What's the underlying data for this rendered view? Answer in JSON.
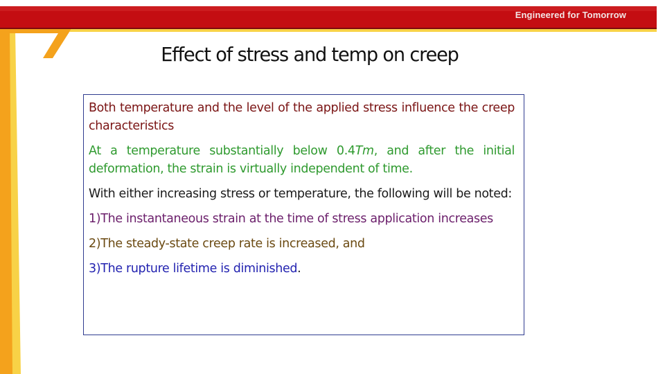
{
  "header": {
    "tagline": "Engineered for Tomorrow",
    "colors": {
      "band_red": "#c40d12",
      "band_shadow": "#7d0a0d",
      "accent_orange": "#f4a21c",
      "accent_yellow": "#f8d247"
    }
  },
  "title": "Effect of stress and temp on creep",
  "content": {
    "p1": "Both temperature and the level of the applied stress influence the creep characteristics",
    "p2_before": "At a temperature substantially below 0.4",
    "p2_italic": "Tm",
    "p2_after": ", and after the initial deformation, the strain is virtually independent of time.",
    "p3": "With either increasing stress or temperature, the following will be noted:",
    "p4": "1)The instantaneous strain at the time of stress application increases",
    "p5": "2)The steady-state creep rate is increased, and",
    "p6": "3)The rupture lifetime is diminished",
    "p6_end": ".",
    "colors": {
      "p1": "#7a1414",
      "p2": "#2f9a2f",
      "p3": "#1a1a1a",
      "p4": "#6b1f6b",
      "p5": "#6b4a12",
      "p6": "#2323b0",
      "border": "#2f3b8f"
    }
  }
}
